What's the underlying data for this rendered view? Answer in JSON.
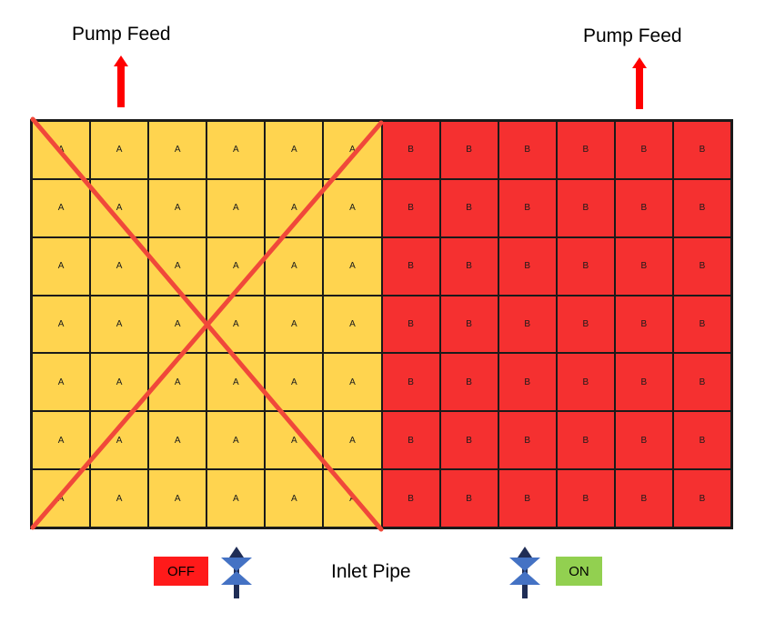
{
  "pump_feed_left": "Pump Feed",
  "pump_feed_right": "Pump Feed",
  "inlet_pipe": "Inlet Pipe",
  "left_block": {
    "label": "A",
    "color": "#FFD44F",
    "columns": 6,
    "rows": 7,
    "crossed_out": true
  },
  "right_block": {
    "label": "B",
    "color": "#F53030",
    "columns": 6,
    "rows": 7
  },
  "status_off": {
    "text": "OFF",
    "color": "#FF1A1A"
  },
  "status_on": {
    "text": "ON",
    "color": "#92D050"
  },
  "colors": {
    "arrow_red": "#FF0000",
    "cross": "#F0483A",
    "valve_blue": "#4472C4",
    "valve_stem": "#1F2D56"
  },
  "icons": [
    "red-up-arrow-icon",
    "valve-icon",
    "cross-out-icon"
  ]
}
